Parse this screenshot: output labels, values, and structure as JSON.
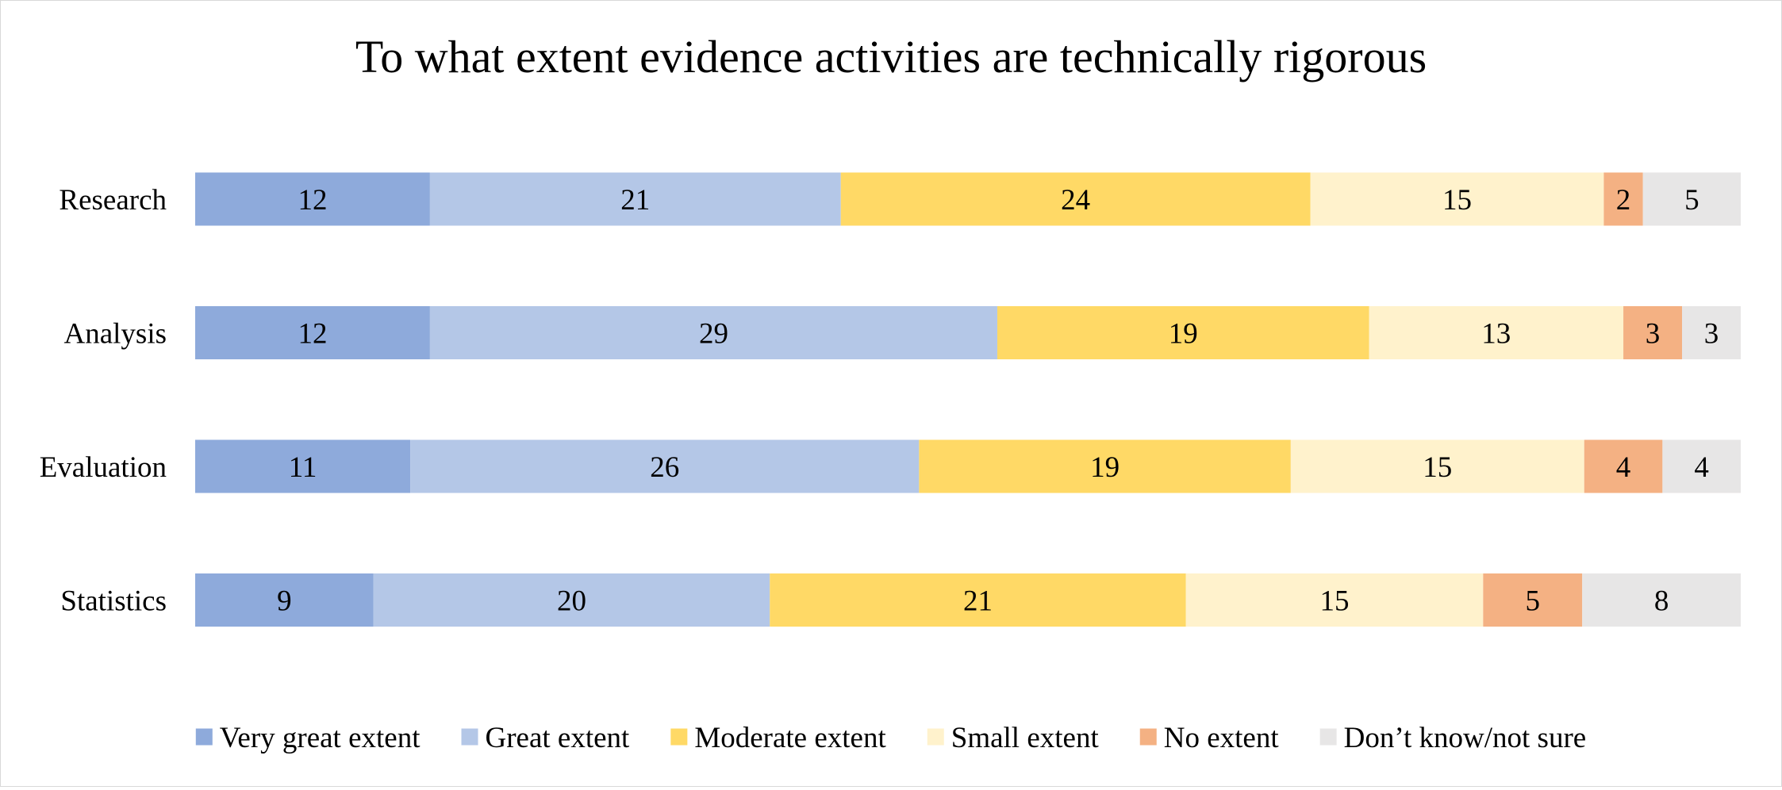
{
  "chart_data": {
    "type": "bar",
    "orientation": "horizontal",
    "stacked": true,
    "title": "To what extent evidence activities are technically rigorous",
    "categories": [
      "Research",
      "Analysis",
      "Evaluation",
      "Statistics"
    ],
    "series": [
      {
        "name": "Very great extent",
        "color": "#8eaadb",
        "values": [
          12,
          12,
          11,
          9
        ]
      },
      {
        "name": "Great extent",
        "color": "#b4c7e7",
        "values": [
          21,
          29,
          26,
          20
        ]
      },
      {
        "name": "Moderate extent",
        "color": "#ffd966",
        "values": [
          24,
          19,
          19,
          21
        ]
      },
      {
        "name": "Small extent",
        "color": "#fff2cc",
        "values": [
          15,
          13,
          15,
          15
        ]
      },
      {
        "name": "No extent",
        "color": "#f4b183",
        "values": [
          2,
          3,
          4,
          5
        ]
      },
      {
        "name": "Don’t know/not sure",
        "color": "#e7e6e6",
        "values": [
          5,
          3,
          4,
          8
        ]
      }
    ],
    "legend_position": "bottom",
    "grid": false,
    "data_labels": true,
    "axis_visible": false
  }
}
